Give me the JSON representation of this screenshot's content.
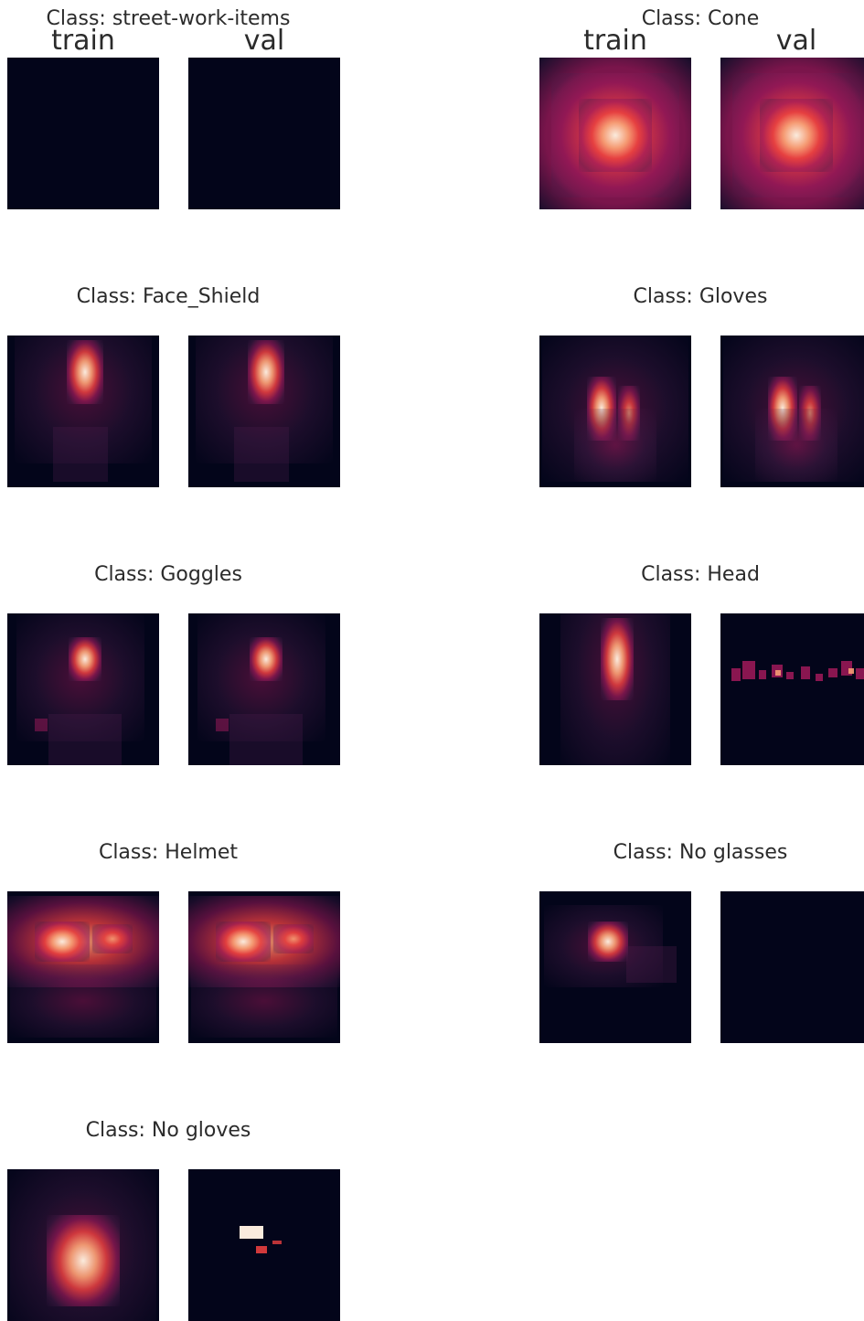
{
  "chart_data": {
    "type": "heatmap",
    "title": "",
    "xlabel": "",
    "ylabel": "",
    "grid": false,
    "colormap": [
      "#03051a",
      "#4c1d4b",
      "#a11a5b",
      "#e83f3f",
      "#f69c73",
      "#faebdd"
    ],
    "split_labels": [
      "train",
      "val"
    ],
    "panels": [
      {
        "class_title": "Class: street-work-items",
        "train": "empty",
        "val": "empty"
      },
      {
        "class_title": "Class: Cone",
        "train": "broad-centered",
        "val": "broad-centered"
      },
      {
        "class_title": "Class: Face_Shield",
        "train": "upper-center-spot",
        "val": "upper-center-spot"
      },
      {
        "class_title": "Class: Gloves",
        "train": "two-columns",
        "val": "two-columns"
      },
      {
        "class_title": "Class: Goggles",
        "train": "center-spot",
        "val": "center-spot"
      },
      {
        "class_title": "Class: Head",
        "train": "vertical-column",
        "val": "sparse-band"
      },
      {
        "class_title": "Class: Helmet",
        "train": "horizontal-band",
        "val": "horizontal-band"
      },
      {
        "class_title": "Class: No glasses",
        "train": "left-center-cluster",
        "val": "empty"
      },
      {
        "class_title": "Class: No gloves",
        "train": "lower-center-column",
        "val": "sparse-boxes"
      }
    ]
  }
}
